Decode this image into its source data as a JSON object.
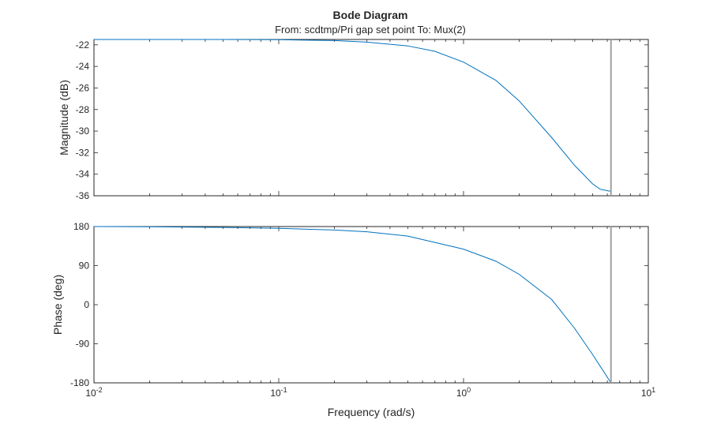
{
  "chart_data": {
    "type": "line",
    "title": "Bode Diagram",
    "subtitle": "From: scdtmp/Pri gap set point  To: Mux(2)",
    "xlabel": "Frequency (rad/s)",
    "xscale": "log",
    "xlim": [
      0.01,
      10
    ],
    "x_ticks": [
      {
        "base": "10",
        "exp": "-2"
      },
      {
        "base": "10",
        "exp": "-1"
      },
      {
        "base": "10",
        "exp": "0"
      },
      {
        "base": "10",
        "exp": "1"
      }
    ],
    "nyquist_frequency": 6.28,
    "panels": [
      {
        "name": "magnitude",
        "ylabel": "Magnitude (dB)",
        "ylim": [
          -36,
          -21.5
        ],
        "y_ticks": [
          "-22",
          "-24",
          "-26",
          "-28",
          "-30",
          "-32",
          "-34",
          "-36"
        ],
        "x": [
          0.01,
          0.02,
          0.05,
          0.1,
          0.2,
          0.3,
          0.5,
          0.7,
          1.0,
          1.5,
          2.0,
          3.0,
          4.0,
          5.0,
          5.5,
          6.28
        ],
        "y": [
          -21.5,
          -21.5,
          -21.5,
          -21.52,
          -21.6,
          -21.75,
          -22.1,
          -22.6,
          -23.6,
          -25.3,
          -27.2,
          -30.6,
          -33.2,
          -34.9,
          -35.4,
          -35.6
        ]
      },
      {
        "name": "phase",
        "ylabel": "Phase (deg)",
        "ylim": [
          -180,
          180
        ],
        "y_ticks": [
          "180",
          "90",
          "0",
          "-90",
          "-180"
        ],
        "x": [
          0.01,
          0.02,
          0.05,
          0.1,
          0.2,
          0.3,
          0.5,
          1.0,
          1.5,
          2.0,
          3.0,
          4.0,
          5.0,
          6.28
        ],
        "y": [
          180,
          179.5,
          178,
          176,
          172,
          168,
          158,
          128,
          100,
          70,
          12,
          -55,
          -115,
          -180
        ]
      }
    ]
  }
}
